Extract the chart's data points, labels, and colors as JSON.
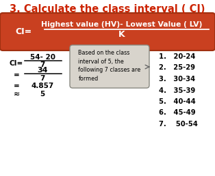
{
  "title": "3. Calculate the class interval ( CI)",
  "title_color": "#cc2200",
  "title_fontsize": 10.5,
  "bg_color": "#ffffff",
  "formula_box_color": "#c94020",
  "formula_box_edge": "#a03010",
  "formula_text_numerator": "Highest value (HV)- Lowest Value ( LV)",
  "formula_text_denominator": "K",
  "formula_label": "CI=",
  "formula_text_color": "#ffffff",
  "calc_label": "CI=",
  "calc_num1": "54- 20",
  "calc_den1": "7",
  "calc_eq": "=",
  "calc_num2": "34",
  "calc_den2": "7",
  "calc_eq2": "=",
  "calc_val1": "4.857",
  "calc_approx": "≈",
  "calc_val2": "5",
  "box_text": "Based on the class\ninterval of 5, the\nfollowing 7 classes are\nformed",
  "box_bg": "#d8d4cc",
  "box_edge": "#888880",
  "classes": [
    "1.   20-24",
    "2.   25-29",
    "3.   30-34",
    "4.   35-39",
    "5.   40-44",
    "6.   45-49",
    "7.    50-54"
  ],
  "class_color": "#000000"
}
